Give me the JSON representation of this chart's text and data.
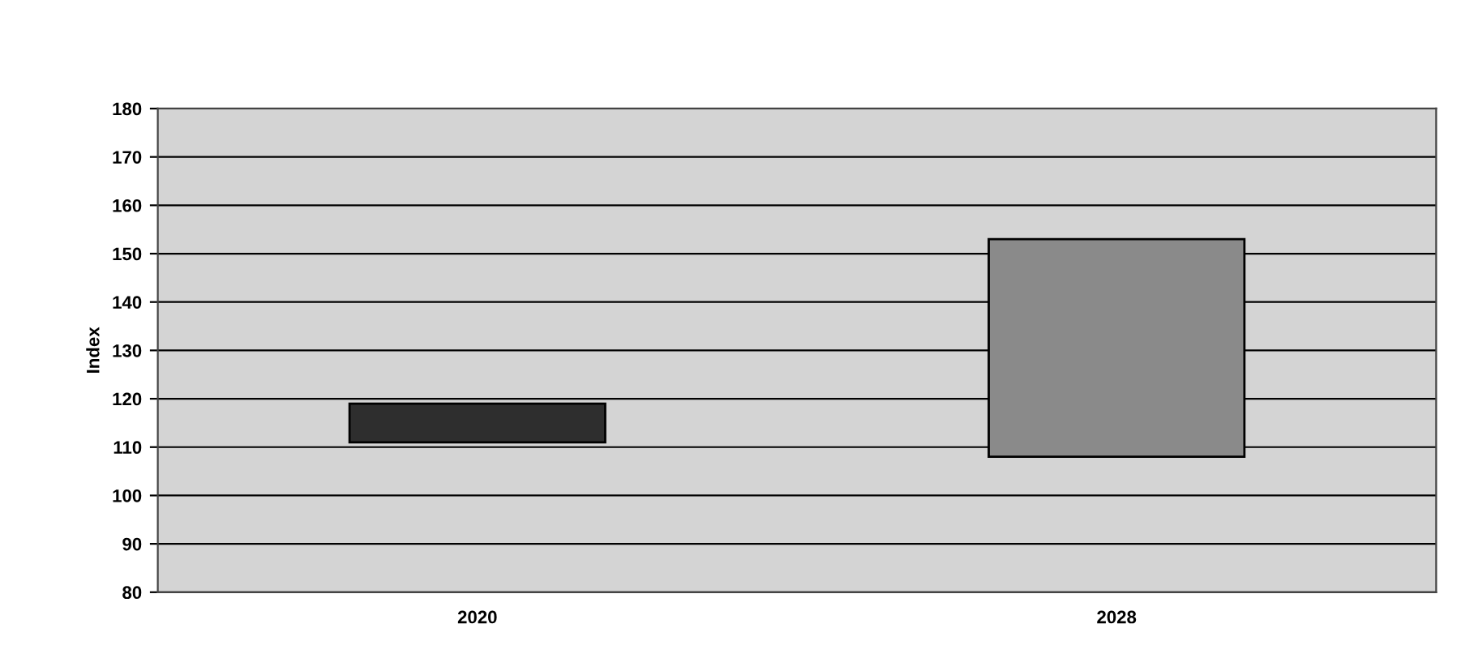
{
  "chart_data": {
    "type": "bar",
    "ylabel": "Index",
    "categories": [
      "2020",
      "2028"
    ],
    "base": [
      111,
      108
    ],
    "values": [
      8,
      45
    ],
    "colors": [
      "#2e2e2e",
      "#8a8a8a"
    ],
    "ylim": [
      80,
      180
    ],
    "yticks": [
      80,
      90,
      100,
      110,
      120,
      130,
      140,
      150,
      160,
      170,
      180
    ],
    "grid": "y"
  }
}
